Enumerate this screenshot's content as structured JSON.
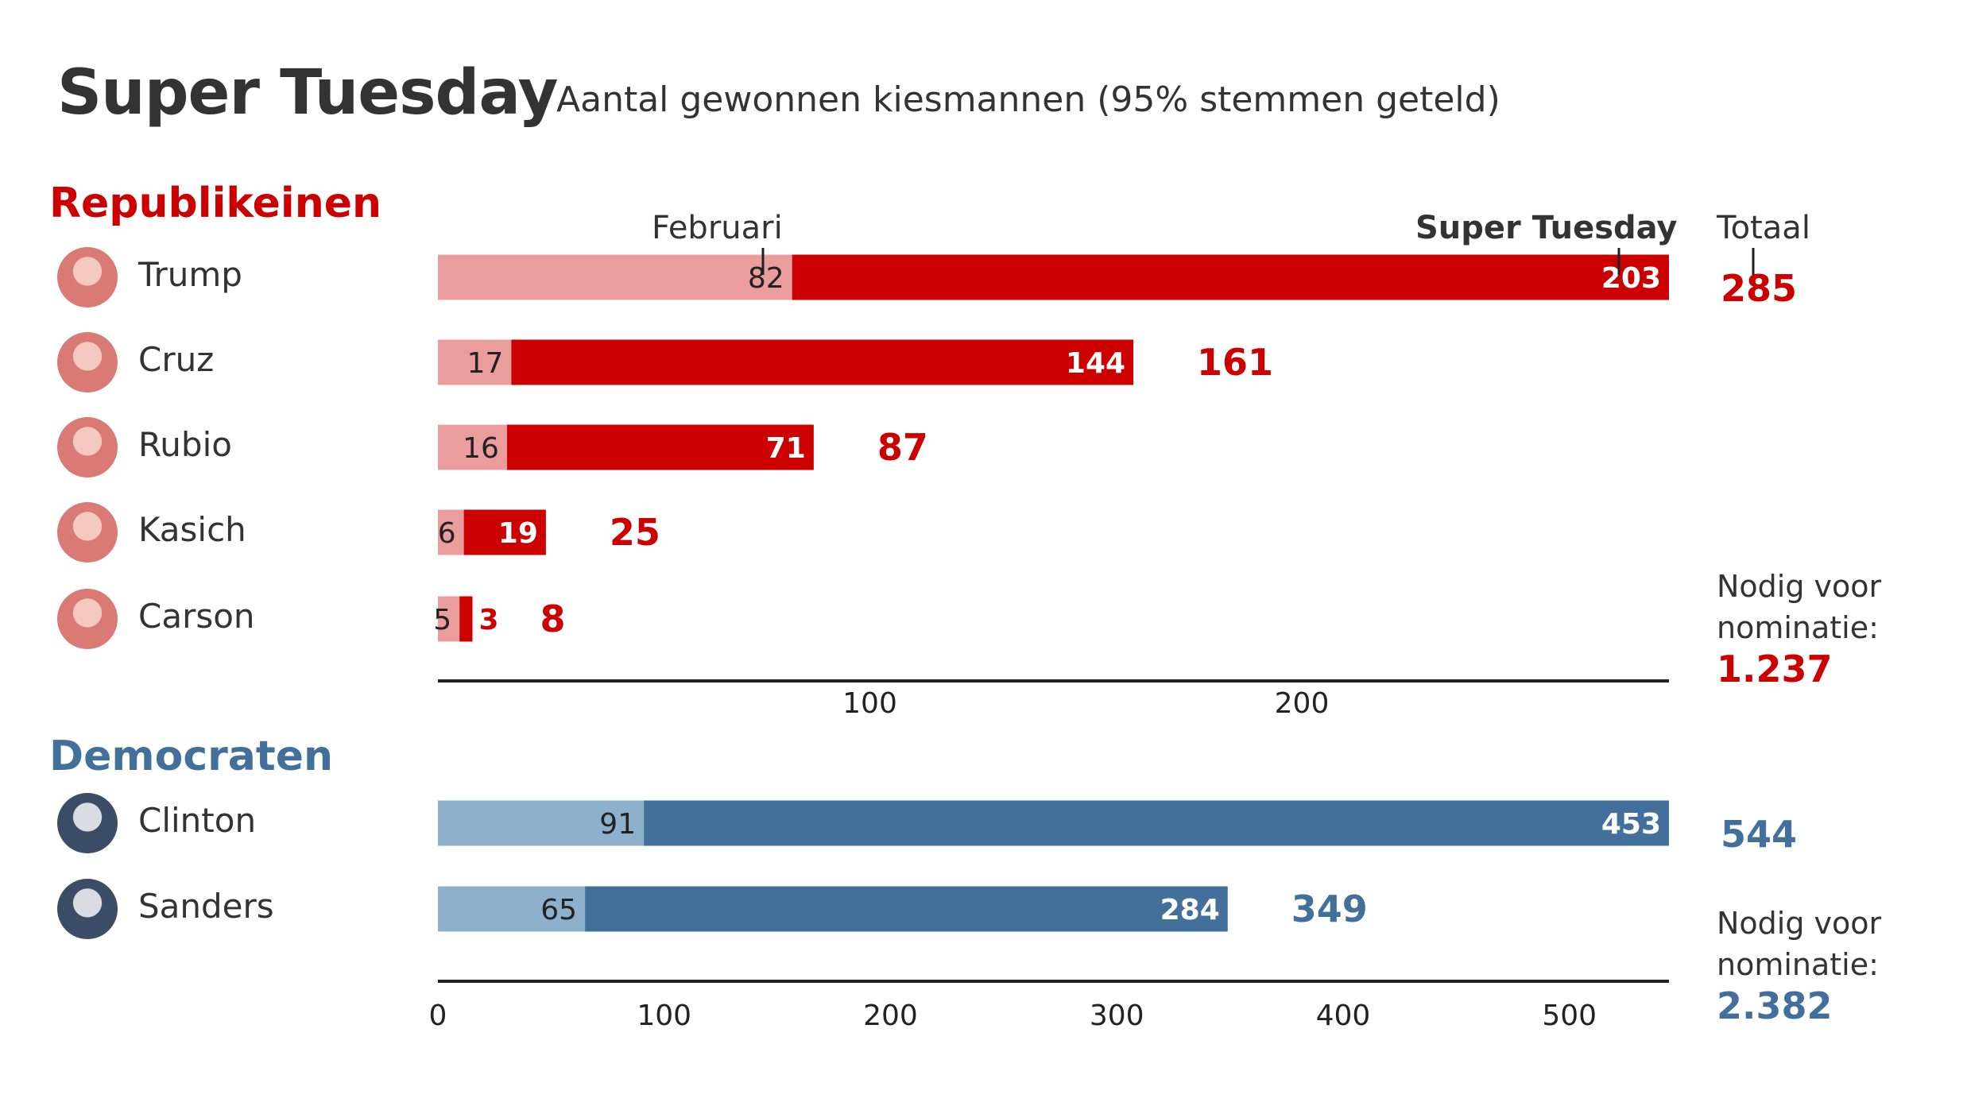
{
  "title": "Super Tuesday",
  "subtitle": "Aantal gewonnen kiesmannen (95% stemmen geteld)",
  "headers": {
    "feb": "Februari",
    "super_tuesday": "Super Tuesday",
    "total": "Totaal"
  },
  "colors": {
    "rep_light": "#eb9c9c",
    "rep_dark": "#cc0000",
    "dem_light": "#8db1cc",
    "dem_dark": "#42709b",
    "axis": "#222222"
  },
  "republicans": {
    "heading": "Republikeinen",
    "needed_line1": "Nodig voor",
    "needed_line2": "nominatie:",
    "needed_value": "1.237"
  },
  "democrats": {
    "heading": "Democraten",
    "needed_line1": "Nodig voor",
    "needed_line2": "nominatie:",
    "needed_value": "2.382"
  },
  "chart_data": [
    {
      "type": "bar",
      "stacked": true,
      "orientation": "horizontal",
      "categories": [
        "Trump",
        "Cruz",
        "Rubio",
        "Kasich",
        "Carson"
      ],
      "series": [
        {
          "name": "Februari",
          "values": [
            82,
            17,
            16,
            6,
            5
          ]
        },
        {
          "name": "Super Tuesday",
          "values": [
            203,
            144,
            71,
            19,
            3
          ]
        }
      ],
      "totals": [
        285,
        161,
        87,
        25,
        8
      ],
      "xlim": [
        0,
        285
      ],
      "xticks": [
        100,
        200
      ]
    },
    {
      "type": "bar",
      "stacked": true,
      "orientation": "horizontal",
      "categories": [
        "Clinton",
        "Sanders"
      ],
      "series": [
        {
          "name": "Februari",
          "values": [
            91,
            65
          ]
        },
        {
          "name": "Super Tuesday",
          "values": [
            453,
            284
          ]
        }
      ],
      "totals": [
        544,
        349
      ],
      "xlim": [
        0,
        544
      ],
      "xticks": [
        0,
        100,
        200,
        300,
        400,
        500
      ]
    }
  ]
}
